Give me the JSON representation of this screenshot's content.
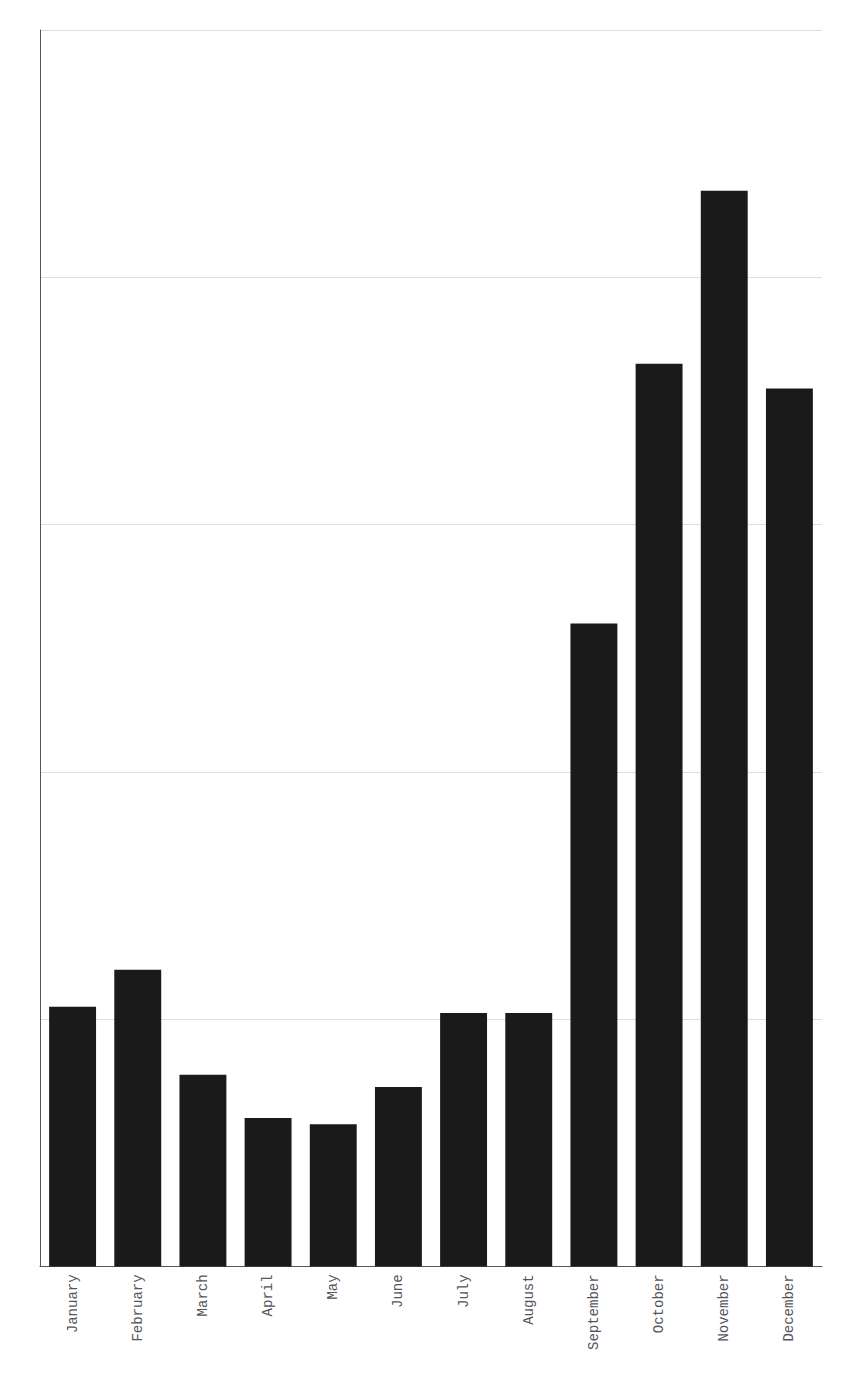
{
  "chart_data": {
    "type": "bar",
    "categories": [
      "January",
      "February",
      "March",
      "April",
      "May",
      "June",
      "July",
      "August",
      "September",
      "October",
      "November",
      "December"
    ],
    "values": [
      2.1,
      2.4,
      1.55,
      1.2,
      1.15,
      1.45,
      2.05,
      2.05,
      5.2,
      7.3,
      8.7,
      7.1
    ],
    "color": "#1a1a1a",
    "ylim": [
      0,
      10
    ],
    "yticks": [
      0,
      2,
      4,
      6,
      8,
      10
    ],
    "grid": true,
    "tick_labels": "x"
  }
}
